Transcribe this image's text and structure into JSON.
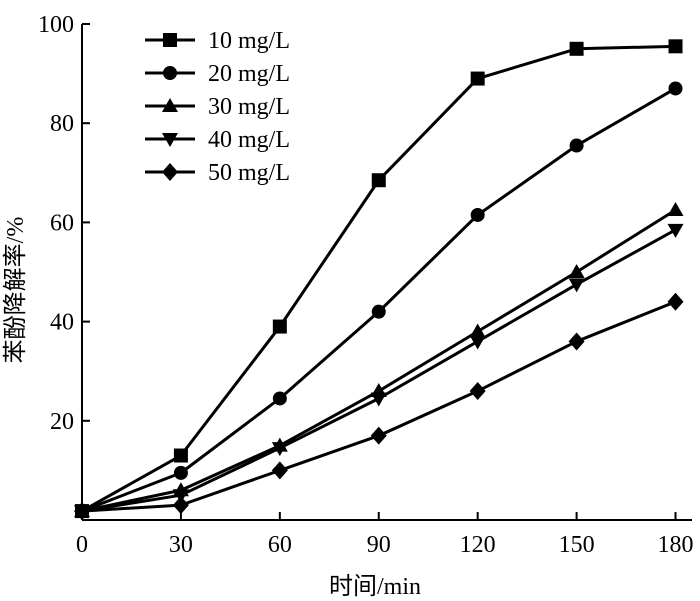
{
  "chart_data": {
    "type": "line",
    "title": "",
    "xlabel": "时间/min",
    "ylabel": "苯酚降解率/%",
    "x": [
      0,
      30,
      60,
      90,
      120,
      150,
      180
    ],
    "xticks": [
      "0",
      "30",
      "60",
      "90",
      "120",
      "150",
      "180"
    ],
    "yticks": [
      "20",
      "40",
      "60",
      "80",
      "100"
    ],
    "xlim": [
      0,
      185
    ],
    "ylim": [
      0,
      100
    ],
    "grid": false,
    "legend_position": "top-left",
    "series": [
      {
        "name": "10 mg/L",
        "marker": "square",
        "values": [
          1.8,
          13,
          39,
          68.5,
          89,
          95,
          95.5
        ]
      },
      {
        "name": "20 mg/L",
        "marker": "circle",
        "values": [
          1.8,
          9.5,
          24.5,
          42,
          61.5,
          75.5,
          87
        ]
      },
      {
        "name": "30 mg/L",
        "marker": "triangle-up",
        "values": [
          1.8,
          6,
          15,
          26,
          38,
          50,
          62.5
        ]
      },
      {
        "name": "40 mg/L",
        "marker": "triangle-down",
        "values": [
          1.8,
          5,
          14.5,
          24.5,
          36,
          47.5,
          58.5
        ]
      },
      {
        "name": "50 mg/L",
        "marker": "diamond",
        "values": [
          1.8,
          3,
          10,
          17,
          26,
          36,
          44
        ]
      }
    ]
  }
}
